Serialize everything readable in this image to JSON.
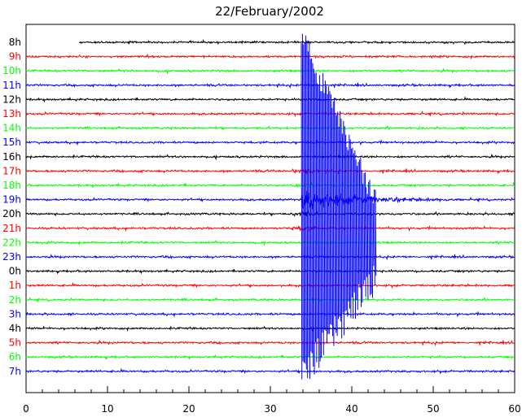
{
  "chart_data": {
    "type": "line",
    "title": "22/February/2002",
    "xlabel": "",
    "ylabel": "",
    "xlim": [
      0,
      60
    ],
    "x_ticks": [
      0,
      10,
      20,
      30,
      40,
      50,
      60
    ],
    "x_tick_labels": [
      "0",
      "10",
      "20",
      "30",
      "40",
      "50",
      "60"
    ],
    "grid": false,
    "legend": "none",
    "rows": [
      {
        "label": "8h",
        "color": "#000000",
        "start_minute": 6.5
      },
      {
        "label": "9h",
        "color": "#ff0000",
        "start_minute": 0
      },
      {
        "label": "10h",
        "color": "#00ff00",
        "start_minute": 0
      },
      {
        "label": "11h",
        "color": "#0000ff",
        "start_minute": 0
      },
      {
        "label": "12h",
        "color": "#000000",
        "start_minute": 0
      },
      {
        "label": "13h",
        "color": "#ff0000",
        "start_minute": 0
      },
      {
        "label": "14h",
        "color": "#00ff00",
        "start_minute": 0
      },
      {
        "label": "15h",
        "color": "#0000ff",
        "start_minute": 0
      },
      {
        "label": "16h",
        "color": "#000000",
        "start_minute": 0
      },
      {
        "label": "17h",
        "color": "#ff0000",
        "start_minute": 0
      },
      {
        "label": "18h",
        "color": "#00ff00",
        "start_minute": 0
      },
      {
        "label": "19h",
        "color": "#0000ff",
        "start_minute": 0
      },
      {
        "label": "20h",
        "color": "#000000",
        "start_minute": 0
      },
      {
        "label": "21h",
        "color": "#ff0000",
        "start_minute": 0
      },
      {
        "label": "22h",
        "color": "#00ff00",
        "start_minute": 0
      },
      {
        "label": "23h",
        "color": "#0000ff",
        "start_minute": 0
      },
      {
        "label": "0h",
        "color": "#000000",
        "start_minute": 0
      },
      {
        "label": "1h",
        "color": "#ff0000",
        "start_minute": 0
      },
      {
        "label": "2h",
        "color": "#00ff00",
        "start_minute": 0
      },
      {
        "label": "3h",
        "color": "#0000ff",
        "start_minute": 0
      },
      {
        "label": "4h",
        "color": "#000000",
        "start_minute": 0
      },
      {
        "label": "5h",
        "color": "#ff0000",
        "start_minute": 0
      },
      {
        "label": "6h",
        "color": "#00ff00",
        "start_minute": 0
      },
      {
        "label": "7h",
        "color": "#0000ff",
        "start_minute": 0
      }
    ],
    "event": {
      "hour_label": "19h",
      "onset_minute": 33.8,
      "coda_end_minute": 52,
      "clipped": true
    }
  }
}
